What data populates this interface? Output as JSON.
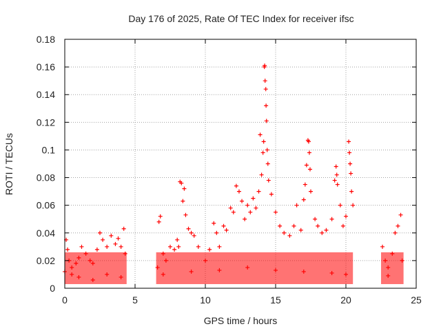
{
  "chart_data": {
    "type": "scatter",
    "title": "Day 176 of 2025, Rate Of TEC Index for receiver ifsc",
    "xlabel": "GPS time / hours",
    "ylabel": "ROTI / TECUs",
    "xlim": [
      0,
      25
    ],
    "ylim": [
      0,
      0.18
    ],
    "xticks": [
      0,
      5,
      10,
      15,
      20,
      25
    ],
    "yticks": [
      0,
      0.02,
      0.04,
      0.06,
      0.08,
      0.1,
      0.12,
      0.14,
      0.16,
      0.18
    ],
    "xtick_labels": [
      "0",
      "5",
      "10",
      "15",
      "20",
      "25"
    ],
    "ytick_labels": [
      "0",
      "0.02",
      "0.04",
      "0.06",
      "0.08",
      "0.1",
      "0.12",
      "0.14",
      "0.16",
      "0.18"
    ],
    "grid": true,
    "marker": "+",
    "color": "#ff0000",
    "series": [
      {
        "name": "ROTI",
        "points": [
          [
            0.0,
            0.012
          ],
          [
            0.1,
            0.035
          ],
          [
            0.2,
            0.028
          ],
          [
            0.3,
            0.02
          ],
          [
            0.5,
            0.015
          ],
          [
            0.8,
            0.018
          ],
          [
            1.0,
            0.022
          ],
          [
            1.2,
            0.03
          ],
          [
            1.5,
            0.025
          ],
          [
            1.8,
            0.02
          ],
          [
            2.0,
            0.018
          ],
          [
            2.3,
            0.028
          ],
          [
            2.5,
            0.04
          ],
          [
            2.7,
            0.035
          ],
          [
            3.0,
            0.03
          ],
          [
            3.3,
            0.038
          ],
          [
            3.6,
            0.032
          ],
          [
            3.8,
            0.036
          ],
          [
            4.0,
            0.03
          ],
          [
            4.2,
            0.043
          ],
          [
            4.3,
            0.025
          ],
          [
            6.6,
            0.015
          ],
          [
            6.7,
            0.048
          ],
          [
            6.8,
            0.052
          ],
          [
            7.0,
            0.025
          ],
          [
            7.2,
            0.02
          ],
          [
            7.5,
            0.03
          ],
          [
            7.8,
            0.028
          ],
          [
            8.0,
            0.035
          ],
          [
            8.1,
            0.03
          ],
          [
            8.2,
            0.077
          ],
          [
            8.3,
            0.076
          ],
          [
            8.4,
            0.063
          ],
          [
            8.5,
            0.072
          ],
          [
            8.6,
            0.053
          ],
          [
            8.8,
            0.043
          ],
          [
            9.0,
            0.04
          ],
          [
            9.2,
            0.038
          ],
          [
            9.5,
            0.03
          ],
          [
            10.0,
            0.02
          ],
          [
            10.3,
            0.028
          ],
          [
            10.6,
            0.047
          ],
          [
            10.8,
            0.04
          ],
          [
            11.0,
            0.03
          ],
          [
            11.3,
            0.045
          ],
          [
            11.5,
            0.042
          ],
          [
            11.8,
            0.058
          ],
          [
            12.0,
            0.055
          ],
          [
            12.2,
            0.074
          ],
          [
            12.4,
            0.07
          ],
          [
            12.6,
            0.063
          ],
          [
            12.8,
            0.05
          ],
          [
            13.0,
            0.06
          ],
          [
            13.2,
            0.055
          ],
          [
            13.4,
            0.065
          ],
          [
            13.6,
            0.058
          ],
          [
            13.8,
            0.07
          ],
          [
            13.9,
            0.111
          ],
          [
            14.0,
            0.082
          ],
          [
            14.1,
            0.098
          ],
          [
            14.15,
            0.106
          ],
          [
            14.2,
            0.16
          ],
          [
            14.22,
            0.161
          ],
          [
            14.25,
            0.15
          ],
          [
            14.3,
            0.144
          ],
          [
            14.32,
            0.132
          ],
          [
            14.35,
            0.121
          ],
          [
            14.4,
            0.1
          ],
          [
            14.45,
            0.09
          ],
          [
            14.5,
            0.078
          ],
          [
            14.7,
            0.068
          ],
          [
            15.0,
            0.055
          ],
          [
            15.3,
            0.045
          ],
          [
            15.6,
            0.04
          ],
          [
            16.0,
            0.038
          ],
          [
            16.3,
            0.045
          ],
          [
            16.5,
            0.06
          ],
          [
            16.8,
            0.042
          ],
          [
            17.0,
            0.064
          ],
          [
            17.1,
            0.075
          ],
          [
            17.2,
            0.089
          ],
          [
            17.3,
            0.107
          ],
          [
            17.35,
            0.106
          ],
          [
            17.4,
            0.098
          ],
          [
            17.45,
            0.086
          ],
          [
            17.5,
            0.07
          ],
          [
            17.8,
            0.05
          ],
          [
            18.0,
            0.045
          ],
          [
            18.3,
            0.04
          ],
          [
            18.6,
            0.042
          ],
          [
            19.0,
            0.05
          ],
          [
            19.2,
            0.078
          ],
          [
            19.3,
            0.088
          ],
          [
            19.35,
            0.082
          ],
          [
            19.4,
            0.075
          ],
          [
            19.6,
            0.06
          ],
          [
            19.8,
            0.045
          ],
          [
            20.0,
            0.052
          ],
          [
            20.2,
            0.106
          ],
          [
            20.25,
            0.098
          ],
          [
            20.3,
            0.09
          ],
          [
            20.35,
            0.083
          ],
          [
            20.4,
            0.07
          ],
          [
            20.5,
            0.06
          ],
          [
            22.6,
            0.03
          ],
          [
            22.8,
            0.02
          ],
          [
            23.0,
            0.015
          ],
          [
            23.3,
            0.025
          ],
          [
            23.5,
            0.04
          ],
          [
            23.7,
            0.045
          ],
          [
            23.9,
            0.053
          ],
          [
            24.0,
            0.02
          ],
          [
            0.5,
            0.01
          ],
          [
            1.0,
            0.008
          ],
          [
            2.0,
            0.006
          ],
          [
            3.0,
            0.01
          ],
          [
            4.0,
            0.008
          ],
          [
            7.0,
            0.01
          ],
          [
            9.0,
            0.012
          ],
          [
            11.0,
            0.013
          ],
          [
            13.0,
            0.015
          ],
          [
            15.0,
            0.013
          ],
          [
            17.0,
            0.012
          ],
          [
            19.0,
            0.011
          ],
          [
            20.0,
            0.01
          ],
          [
            23.0,
            0.009
          ]
        ]
      }
    ]
  }
}
